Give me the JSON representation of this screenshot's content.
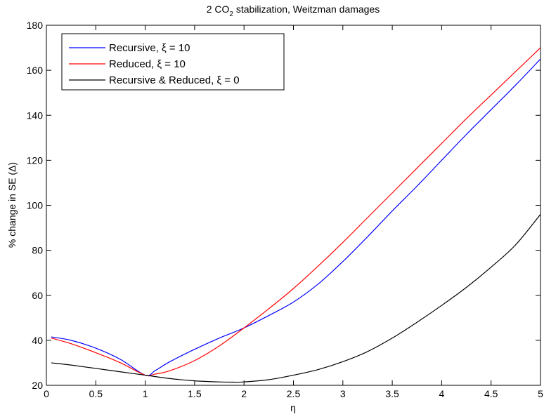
{
  "chart_data": {
    "type": "line",
    "title_parts": [
      "2 CO",
      "2",
      " stabilization, Weitzman damages"
    ],
    "xlabel": "η",
    "ylabel": "% change in SE (Δ)",
    "xlim": [
      0,
      5
    ],
    "ylim": [
      20,
      180
    ],
    "xticks": [
      0,
      0.5,
      1,
      1.5,
      2,
      2.5,
      3,
      3.5,
      4,
      4.5,
      5
    ],
    "xtick_labels": [
      "0",
      "0.5",
      "1",
      "1.5",
      "2",
      "2.5",
      "3",
      "3.5",
      "4",
      "4.5",
      "5"
    ],
    "yticks": [
      20,
      40,
      60,
      80,
      100,
      120,
      140,
      160,
      180
    ],
    "ytick_labels": [
      "20",
      "40",
      "60",
      "80",
      "100",
      "120",
      "140",
      "160",
      "180"
    ],
    "grid": false,
    "legend_position": "top-left",
    "series": [
      {
        "name": "Recursive, ξ = 10",
        "color": "#0000ff",
        "x": [
          0.05,
          0.25,
          0.5,
          0.75,
          1.0,
          1.1,
          1.25,
          1.5,
          1.75,
          2.0,
          2.25,
          2.5,
          2.75,
          3.0,
          3.25,
          3.5,
          3.75,
          4.0,
          4.25,
          4.5,
          4.75,
          5.0
        ],
        "y": [
          41.5,
          40,
          36.5,
          31.5,
          24.5,
          26.5,
          30.5,
          36,
          41,
          45.5,
          51,
          57,
          65,
          75,
          86,
          97.5,
          108.5,
          120,
          131.5,
          142.5,
          153.5,
          165
        ]
      },
      {
        "name": "Reduced, ξ = 10",
        "color": "#ff0000",
        "x": [
          0.05,
          0.25,
          0.5,
          0.75,
          1.0,
          1.1,
          1.25,
          1.5,
          1.75,
          2.0,
          2.25,
          2.5,
          2.75,
          3.0,
          3.25,
          3.5,
          3.75,
          4.0,
          4.25,
          4.5,
          4.75,
          5.0
        ],
        "y": [
          41,
          38.5,
          34.5,
          30,
          24.5,
          25,
          26.5,
          31,
          37.5,
          45.5,
          54,
          63,
          73,
          83.5,
          94.5,
          105.5,
          116.5,
          127.5,
          138.5,
          149,
          159.5,
          170
        ]
      },
      {
        "name": "Recursive & Reduced, ξ = 0",
        "color": "#000000",
        "x": [
          0.05,
          0.25,
          0.5,
          0.75,
          1.0,
          1.25,
          1.5,
          1.75,
          1.9,
          2.0,
          2.25,
          2.5,
          2.75,
          3.0,
          3.25,
          3.5,
          3.75,
          4.0,
          4.25,
          4.5,
          4.75,
          5.0
        ],
        "y": [
          30,
          29,
          27.5,
          26,
          24.5,
          23,
          22,
          21.5,
          21.4,
          21.5,
          22.5,
          24.5,
          27,
          30.5,
          35,
          41,
          48,
          55.5,
          63.5,
          72.5,
          82.5,
          96
        ]
      }
    ]
  }
}
